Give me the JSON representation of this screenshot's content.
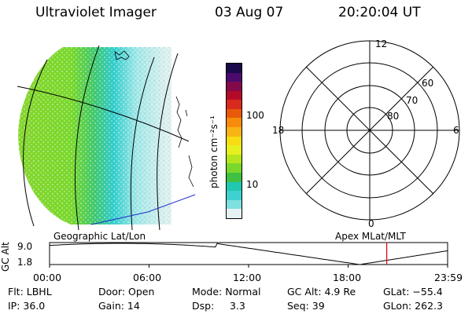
{
  "header": {
    "instrument": "Ultraviolet Imager",
    "date": "03 Aug 07",
    "time": "20:20:04 UT"
  },
  "colorbar": {
    "unit_label": "photon cm⁻²s⁻¹",
    "scale": "log",
    "tick_labels": [
      "100",
      "10"
    ],
    "colors": [
      "#e6f2f2",
      "#7fe0e0",
      "#40d0d0",
      "#20c8b0",
      "#40c040",
      "#7ad82a",
      "#b4e61e",
      "#e6f01e",
      "#f8dc14",
      "#f8b414",
      "#f88c0a",
      "#e85a0a",
      "#d82a1e",
      "#b40a2a",
      "#820a4a",
      "#4a0a6e",
      "#1a0a4a"
    ]
  },
  "panel_labels": {
    "left": "Geographic Lat/Lon",
    "right": "Apex MLat/MLT"
  },
  "polar": {
    "mlt_labels": [
      "12",
      "18",
      "6",
      "0"
    ],
    "mlat_labels": [
      "60",
      "70",
      "80"
    ]
  },
  "timeline": {
    "axis_label": "GC Alt",
    "y_labels": [
      "9.0",
      "1.8"
    ],
    "y_range": [
      1.8,
      9.0
    ],
    "x_labels": [
      "00:00",
      "06:00",
      "12:00",
      "18:00",
      "23:59"
    ],
    "marker_time_hours": 20.33,
    "marker_color": "#e00000"
  },
  "status": {
    "flt": "Flt: LBHL",
    "door": "Door: Open",
    "mode": "Mode: Normal",
    "gc_alt": "GC Alt: 4.9 Re",
    "glat": "GLat: −55.4",
    "ip": "IP: 36.0",
    "gain": "Gain: 14",
    "dsp_label": "Dsp:",
    "dsp_value": "3.3",
    "seq": "Seq: 39",
    "glon": "GLon: 262.3"
  }
}
